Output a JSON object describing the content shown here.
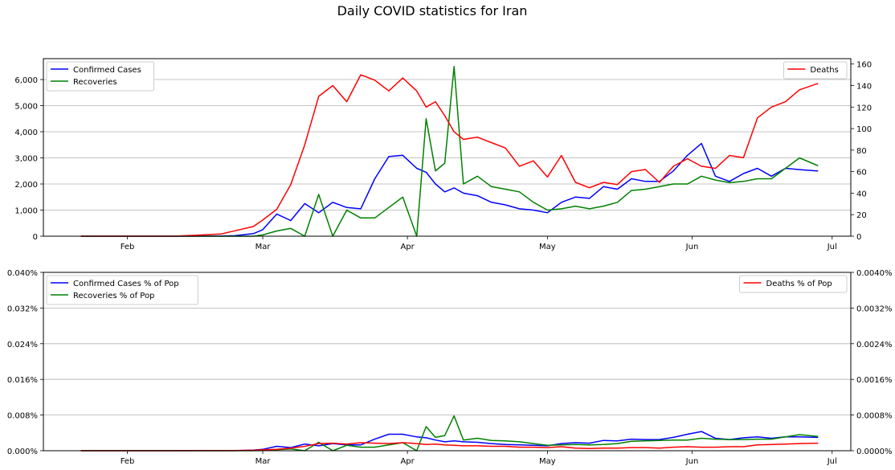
{
  "figure": {
    "suptitle": "Daily COVID statistics for Iran",
    "month_ticks": [
      "Feb",
      "Mar",
      "Apr",
      "May",
      "Jun",
      "Jul"
    ]
  },
  "chart_data": [
    {
      "type": "line",
      "x": [
        "2020-01-22",
        "2020-02-01",
        "2020-02-11",
        "2020-02-21",
        "2020-02-24",
        "2020-02-28",
        "2020-03-01",
        "2020-03-04",
        "2020-03-07",
        "2020-03-10",
        "2020-03-13",
        "2020-03-16",
        "2020-03-19",
        "2020-03-22",
        "2020-03-25",
        "2020-03-28",
        "2020-03-31",
        "2020-04-03",
        "2020-04-05",
        "2020-04-07",
        "2020-04-09",
        "2020-04-11",
        "2020-04-13",
        "2020-04-16",
        "2020-04-19",
        "2020-04-22",
        "2020-04-25",
        "2020-04-28",
        "2020-05-01",
        "2020-05-04",
        "2020-05-07",
        "2020-05-10",
        "2020-05-13",
        "2020-05-16",
        "2020-05-19",
        "2020-05-22",
        "2020-05-25",
        "2020-05-28",
        "2020-05-31",
        "2020-06-03",
        "2020-06-06",
        "2020-06-09",
        "2020-06-12",
        "2020-06-15",
        "2020-06-18",
        "2020-06-21",
        "2020-06-24",
        "2020-06-28"
      ],
      "series_left": [
        {
          "name": "Confirmed Cases",
          "color": "#0000ff",
          "values": [
            0,
            0,
            0,
            5,
            20,
            100,
            250,
            850,
            600,
            1250,
            900,
            1300,
            1100,
            1050,
            2200,
            3050,
            3100,
            2600,
            2450,
            2000,
            1700,
            1850,
            1650,
            1550,
            1300,
            1200,
            1050,
            1000,
            900,
            1300,
            1500,
            1450,
            1900,
            1800,
            2200,
            2100,
            2100,
            2500,
            3100,
            3550,
            2300,
            2100,
            2400,
            2600,
            2300,
            2600,
            2550,
            2500
          ]
        },
        {
          "name": "Recoveries",
          "color": "#008000",
          "values": [
            0,
            0,
            0,
            0,
            0,
            0,
            50,
            200,
            300,
            0,
            1600,
            0,
            1000,
            700,
            700,
            1100,
            1500,
            0,
            4500,
            2500,
            2800,
            6500,
            2000,
            2300,
            1900,
            1800,
            1700,
            1300,
            1000,
            1050,
            1150,
            1050,
            1150,
            1300,
            1750,
            1800,
            1900,
            2000,
            2000,
            2300,
            2150,
            2050,
            2100,
            2200,
            2200,
            2600,
            3000,
            2700
          ]
        }
      ],
      "series_right": [
        {
          "name": "Deaths",
          "color": "#ff0000",
          "values": [
            0,
            0,
            0,
            2,
            5,
            9,
            15,
            25,
            48,
            85,
            130,
            140,
            125,
            150,
            145,
            135,
            147,
            135,
            120,
            125,
            112,
            97,
            90,
            92,
            87,
            82,
            65,
            70,
            55,
            75,
            50,
            45,
            50,
            48,
            60,
            62,
            50,
            65,
            72,
            65,
            63,
            75,
            73,
            110,
            120,
            125,
            136,
            142
          ]
        }
      ],
      "title": "",
      "xlabel": "",
      "ylabel": "",
      "ylim_left": [
        0,
        6800
      ],
      "ylim_right": [
        0,
        165
      ],
      "yticks_left": [
        "0",
        "1,000",
        "2,000",
        "3,000",
        "4,000",
        "5,000",
        "6,000"
      ],
      "yticks_right": [
        "0",
        "20",
        "40",
        "60",
        "80",
        "100",
        "120",
        "140",
        "160"
      ],
      "grid": true,
      "legend_left": "top-left",
      "legend_right": "top-right"
    },
    {
      "type": "line",
      "x": [
        "2020-01-22",
        "2020-02-01",
        "2020-02-11",
        "2020-02-21",
        "2020-02-24",
        "2020-02-28",
        "2020-03-01",
        "2020-03-04",
        "2020-03-07",
        "2020-03-10",
        "2020-03-13",
        "2020-03-16",
        "2020-03-19",
        "2020-03-22",
        "2020-03-25",
        "2020-03-28",
        "2020-03-31",
        "2020-04-03",
        "2020-04-05",
        "2020-04-07",
        "2020-04-09",
        "2020-04-11",
        "2020-04-13",
        "2020-04-16",
        "2020-04-19",
        "2020-04-22",
        "2020-04-25",
        "2020-04-28",
        "2020-05-01",
        "2020-05-04",
        "2020-05-07",
        "2020-05-10",
        "2020-05-13",
        "2020-05-16",
        "2020-05-19",
        "2020-05-22",
        "2020-05-25",
        "2020-05-28",
        "2020-05-31",
        "2020-06-03",
        "2020-06-06",
        "2020-06-09",
        "2020-06-12",
        "2020-06-15",
        "2020-06-18",
        "2020-06-21",
        "2020-06-24",
        "2020-06-28"
      ],
      "series_left": [
        {
          "name": "Confirmed Cases % of Pop",
          "color": "#0000ff",
          "values": [
            0,
            0,
            0,
            1e-05,
            2e-05,
            0.00012,
            0.0003,
            0.001,
            0.0007,
            0.0015,
            0.0011,
            0.0016,
            0.0013,
            0.0013,
            0.0026,
            0.0037,
            0.0037,
            0.0031,
            0.0029,
            0.0024,
            0.002,
            0.0022,
            0.002,
            0.0019,
            0.0016,
            0.0014,
            0.0013,
            0.0012,
            0.0011,
            0.0016,
            0.0018,
            0.0017,
            0.0023,
            0.0022,
            0.0026,
            0.0025,
            0.0025,
            0.003,
            0.0037,
            0.0043,
            0.0028,
            0.0025,
            0.0029,
            0.0031,
            0.0028,
            0.0031,
            0.0031,
            0.003
          ]
        },
        {
          "name": "Recoveries % of Pop",
          "color": "#008000",
          "values": [
            0,
            0,
            0,
            0,
            0,
            0,
            6e-05,
            0.00024,
            0.0004,
            0,
            0.0019,
            0,
            0.0012,
            0.0008,
            0.0008,
            0.0013,
            0.0018,
            0,
            0.0054,
            0.003,
            0.0034,
            0.0078,
            0.0024,
            0.0028,
            0.0023,
            0.0022,
            0.002,
            0.0016,
            0.0012,
            0.0013,
            0.0014,
            0.0013,
            0.0014,
            0.0016,
            0.0021,
            0.0022,
            0.0023,
            0.0024,
            0.0024,
            0.0028,
            0.0026,
            0.0025,
            0.0025,
            0.0026,
            0.0026,
            0.0031,
            0.0036,
            0.0032
          ]
        }
      ],
      "series_right": [
        {
          "name": "Deaths % of Pop",
          "color": "#ff0000",
          "values": [
            0,
            0,
            0,
            2e-06,
            6e-06,
            1e-05,
            2e-05,
            3e-05,
            6e-05,
            0.0001,
            0.00016,
            0.00017,
            0.00015,
            0.00018,
            0.00017,
            0.00016,
            0.00018,
            0.00016,
            0.00014,
            0.00015,
            0.00013,
            0.00012,
            0.00011,
            0.00011,
            0.0001,
            0.0001,
            8e-05,
            8e-05,
            7e-05,
            9e-05,
            6e-05,
            5e-05,
            6e-05,
            6e-05,
            7e-05,
            7e-05,
            6e-05,
            8e-05,
            9e-05,
            8e-05,
            8e-05,
            9e-05,
            9e-05,
            0.00013,
            0.00014,
            0.00015,
            0.00016,
            0.00017
          ]
        }
      ],
      "title": "",
      "xlabel": "",
      "ylabel": "",
      "ylim_left": [
        0,
        0.04
      ],
      "ylim_right": [
        0,
        0.004
      ],
      "yticks_left": [
        "0.000%",
        "0.008%",
        "0.016%",
        "0.024%",
        "0.032%",
        "0.040%"
      ],
      "yticks_right": [
        "0.0000%",
        "0.0008%",
        "0.0016%",
        "0.0024%",
        "0.0032%",
        "0.0040%"
      ],
      "grid": true,
      "legend_left": "top-left",
      "legend_right": "top-right"
    }
  ]
}
